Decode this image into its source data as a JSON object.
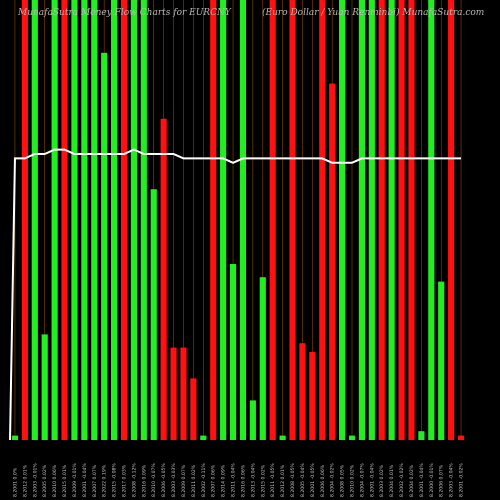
{
  "header": {
    "left_title": "MunafaSutra  Money Flow  Charts for EURCNY",
    "right_title": "(Euro Dollar / Yuan Renminbi)  MunafaSutra.com"
  },
  "colors": {
    "up": "#22ee22",
    "down": "#ff1111",
    "line": "#ffffff",
    "grid": "#8a4a00",
    "background": "#000000"
  },
  "chart_data": {
    "type": "bar",
    "title": "",
    "ylim": [
      0,
      100
    ],
    "categories": [
      "8.2001 0.0%",
      "8.2012 0.01%",
      "8.2003 -0.01%",
      "8.2005 0.02%",
      "8.2010 0.06%",
      "8.2015 0.01%",
      "8.2009 -0.01%",
      "8.2001 -0.04%",
      "8.2007 0.07%",
      "8.2022 0.19%",
      "8.2015 -0.08%",
      "8.2017 0.03%",
      "8.2008 -0.12%",
      "8.2016 0.09%",
      "8.2010 -0.07%",
      "8.2006 -0.05%",
      "8.2003 -0.03%",
      "8.2009 0.07%",
      "8.2011 0.02%",
      "8.2002 -0.11%",
      "8.2007 0.06%",
      "8.2014 0.09%",
      "8.2011 -0.04%",
      "8.2016 0.06%",
      "8.2013 -0.04%",
      "8.2015 0.02%",
      "8.2011 -0.05%",
      "8.2012 0.01%",
      "8.2008 -0.05%",
      "8.2005 -0.04%",
      "8.2001 -0.05%",
      "8.2006 0.06%",
      "8.2004 -0.02%",
      "8.2008 0.05%",
      "8.2010 0.02%",
      "8.2004 -0.07%",
      "8.2001 -0.04%",
      "8.2003 0.02%",
      "8.2004 0.01%",
      "8.2002 -0.02%",
      "8.2004 0.02%",
      "8.2001 -0.04%",
      "8.2000 -0.01%",
      "8.2006 0.07%",
      "8.2003 -0.04%",
      "8.2001 -0.02%"
    ],
    "series": [
      {
        "values": [
          1,
          100,
          100,
          24,
          100,
          100,
          100,
          100,
          100,
          88,
          100,
          100,
          100,
          100,
          57,
          73,
          21,
          21,
          14,
          1,
          100,
          100,
          40,
          100,
          9,
          37,
          100,
          1,
          100,
          22,
          20,
          100,
          81,
          100,
          1,
          100,
          100,
          100,
          100,
          100,
          100,
          2,
          100,
          36,
          100,
          1
        ],
        "colors": [
          "up",
          "down",
          "up",
          "up",
          "up",
          "down",
          "up",
          "up",
          "up",
          "up",
          "up",
          "down",
          "up",
          "up",
          "up",
          "down",
          "down",
          "down",
          "down",
          "up",
          "down",
          "up",
          "up",
          "up",
          "up",
          "up",
          "down",
          "up",
          "down",
          "down",
          "down",
          "down",
          "down",
          "up",
          "up",
          "up",
          "up",
          "down",
          "up",
          "down",
          "down",
          "up",
          "up",
          "up",
          "down",
          "down"
        ]
      },
      {
        "values": [
          64,
          64,
          65,
          65,
          66,
          66,
          65,
          65,
          65,
          65,
          65,
          65,
          66,
          65,
          65,
          65,
          65,
          64,
          64,
          64,
          64,
          64,
          63,
          64,
          64,
          64,
          64,
          64,
          64,
          64,
          64,
          64,
          63,
          63,
          63,
          64,
          64,
          64,
          64,
          64,
          64,
          64,
          64,
          64,
          64,
          64
        ]
      }
    ]
  }
}
